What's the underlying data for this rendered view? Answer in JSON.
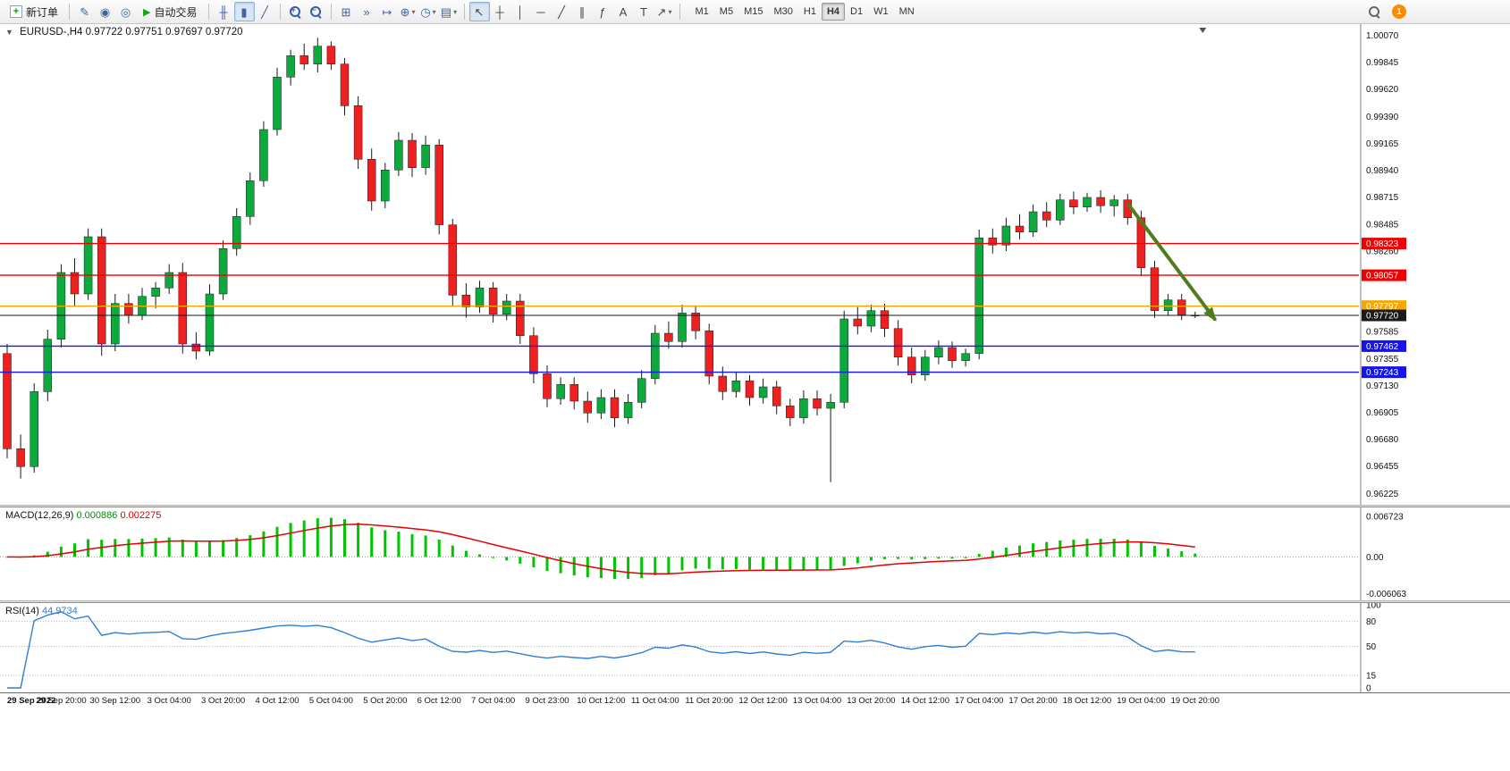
{
  "toolbar": {
    "new_order_label": "新订单",
    "auto_trading_label": "自动交易",
    "left_icons": [
      {
        "name": "metaeditor-icon",
        "glyph": "✎"
      },
      {
        "name": "community-icon",
        "glyph": "◉"
      },
      {
        "name": "support-icon",
        "glyph": "◎"
      }
    ],
    "chart_type_icons": [
      {
        "name": "bar-chart-icon",
        "glyph": "╫"
      },
      {
        "name": "candlestick-chart-icon",
        "glyph": "▮",
        "active": true
      },
      {
        "name": "line-chart-icon",
        "glyph": "╱"
      }
    ],
    "zoom_icons": [
      {
        "name": "zoom-in-icon",
        "sign": "+"
      },
      {
        "name": "zoom-out-icon",
        "sign": "−"
      }
    ],
    "window_icons": [
      {
        "name": "tile-windows-icon",
        "glyph": "⊞"
      },
      {
        "name": "auto-scroll-icon",
        "glyph": "»"
      },
      {
        "name": "chart-shift-icon",
        "glyph": "↦"
      },
      {
        "name": "indicators-icon",
        "glyph": "⊕",
        "dropdown": true
      },
      {
        "name": "periods-icon",
        "glyph": "◷",
        "dropdown": true
      },
      {
        "name": "templates-icon",
        "glyph": "▤",
        "dropdown": true
      }
    ],
    "line_study_icons": [
      {
        "name": "cursor-icon",
        "glyph": "↖",
        "active": true
      },
      {
        "name": "crosshair-icon",
        "glyph": "┼"
      },
      {
        "name": "vertical-line-icon",
        "glyph": "│"
      },
      {
        "name": "horizontal-line-icon",
        "glyph": "─"
      },
      {
        "name": "trendline-icon",
        "glyph": "╱"
      },
      {
        "name": "equidistant-channel-icon",
        "glyph": "∥"
      },
      {
        "name": "fibonacci-icon",
        "glyph": "ƒ"
      },
      {
        "name": "text-icon",
        "glyph": "A"
      },
      {
        "name": "text-label-icon",
        "glyph": "T"
      },
      {
        "name": "arrows-icon",
        "glyph": "↗",
        "dropdown": true
      }
    ],
    "timeframes": [
      "M1",
      "M5",
      "M15",
      "M30",
      "H1",
      "H4",
      "D1",
      "W1",
      "MN"
    ],
    "active_timeframe": "H4",
    "notification_badge": "1"
  },
  "chart": {
    "title": "EURUSD-,H4",
    "ohlc_text": "0.97722 0.97751 0.97697 0.97720"
  },
  "chart_data": {
    "type": "candlestick",
    "symbol": "EURUSD-",
    "timeframe": "H4",
    "price_range": {
      "top": 1.00165,
      "bottom": 0.9613
    },
    "price_scale_labels": [
      "1.00070",
      "0.99845",
      "0.99620",
      "0.99390",
      "0.99165",
      "0.98940",
      "0.98715",
      "0.98485",
      "0.98260",
      "0.98035",
      "0.97810",
      "0.97585",
      "0.97355",
      "0.97130",
      "0.96905",
      "0.96680",
      "0.96455",
      "0.96225"
    ],
    "time_labels": [
      "29 Sep 2022",
      "29 Sep 20:00",
      "30 Sep 12:00",
      "3 Oct 04:00",
      "3 Oct 20:00",
      "4 Oct 12:00",
      "5 Oct 04:00",
      "5 Oct 20:00",
      "6 Oct 12:00",
      "7 Oct 04:00",
      "9 Oct 23:00",
      "10 Oct 12:00",
      "11 Oct 04:00",
      "11 Oct 20:00",
      "12 Oct 12:00",
      "13 Oct 04:00",
      "13 Oct 20:00",
      "14 Oct 12:00",
      "17 Oct 04:00",
      "17 Oct 20:00",
      "18 Oct 12:00",
      "19 Oct 04:00",
      "19 Oct 20:00"
    ],
    "bars_per_time_label": 4,
    "colors": {
      "bull": "#0caa3c",
      "bear": "#ef2020",
      "wick": "#1a1a1a"
    },
    "level_lines": [
      {
        "price": 0.98323,
        "label": "0.98323",
        "color": "#f20000",
        "type": "resistance"
      },
      {
        "price": 0.98057,
        "label": "0.98057",
        "color": "#f20000",
        "type": "resistance"
      },
      {
        "price": 0.97797,
        "label": "0.97797",
        "color": "#f7a800",
        "type": "pivot"
      },
      {
        "price": 0.9772,
        "label": "0.97720",
        "color": "#1a1a1a",
        "type": "current-price"
      },
      {
        "price": 0.97462,
        "label": "0.97462",
        "color": "#1414f0",
        "type": "support"
      },
      {
        "price": 0.97243,
        "label": "0.97243",
        "color": "#1414f0",
        "type": "support"
      }
    ],
    "arrow_annotation": {
      "from_index": 83,
      "from_price": 0.9866,
      "to_index": 89.5,
      "to_price": 0.9768,
      "color": "#4e7d1e"
    },
    "candles": [
      [
        0.974,
        0.9748,
        0.9652,
        0.966
      ],
      [
        0.966,
        0.9672,
        0.9635,
        0.9645
      ],
      [
        0.9645,
        0.9715,
        0.964,
        0.9708
      ],
      [
        0.9708,
        0.976,
        0.97,
        0.9752
      ],
      [
        0.9752,
        0.9815,
        0.9745,
        0.9808
      ],
      [
        0.9808,
        0.982,
        0.978,
        0.979
      ],
      [
        0.979,
        0.9845,
        0.9785,
        0.9838
      ],
      [
        0.9838,
        0.9845,
        0.9738,
        0.9748
      ],
      [
        0.9748,
        0.979,
        0.9742,
        0.9782
      ],
      [
        0.9782,
        0.979,
        0.9765,
        0.9772
      ],
      [
        0.9772,
        0.9795,
        0.9768,
        0.9788
      ],
      [
        0.9788,
        0.98,
        0.9778,
        0.9795
      ],
      [
        0.9795,
        0.9815,
        0.979,
        0.9808
      ],
      [
        0.9808,
        0.9816,
        0.974,
        0.9748
      ],
      [
        0.9748,
        0.9758,
        0.9735,
        0.9742
      ],
      [
        0.9742,
        0.9798,
        0.9738,
        0.979
      ],
      [
        0.979,
        0.9835,
        0.9785,
        0.9828
      ],
      [
        0.9828,
        0.9862,
        0.9822,
        0.9855
      ],
      [
        0.9855,
        0.9892,
        0.9848,
        0.9885
      ],
      [
        0.9885,
        0.9935,
        0.988,
        0.9928
      ],
      [
        0.9928,
        0.998,
        0.9923,
        0.9972
      ],
      [
        0.9972,
        0.9995,
        0.9965,
        0.999
      ],
      [
        0.999,
        1.0,
        0.9978,
        0.9983
      ],
      [
        0.9983,
        1.0005,
        0.9976,
        0.9998
      ],
      [
        0.9998,
        1.0002,
        0.9978,
        0.9983
      ],
      [
        0.9983,
        0.9988,
        0.994,
        0.9948
      ],
      [
        0.9948,
        0.9956,
        0.9895,
        0.9903
      ],
      [
        0.9903,
        0.9912,
        0.986,
        0.9868
      ],
      [
        0.9868,
        0.99,
        0.9862,
        0.9894
      ],
      [
        0.9894,
        0.9926,
        0.9889,
        0.9919
      ],
      [
        0.9919,
        0.9925,
        0.9888,
        0.9896
      ],
      [
        0.9896,
        0.9923,
        0.989,
        0.9915
      ],
      [
        0.9915,
        0.992,
        0.984,
        0.9848
      ],
      [
        0.9848,
        0.9853,
        0.978,
        0.9789
      ],
      [
        0.9789,
        0.9799,
        0.977,
        0.9779
      ],
      [
        0.9779,
        0.9801,
        0.9774,
        0.9795
      ],
      [
        0.9795,
        0.98,
        0.9766,
        0.9773
      ],
      [
        0.9773,
        0.979,
        0.9768,
        0.9784
      ],
      [
        0.9784,
        0.979,
        0.9748,
        0.9755
      ],
      [
        0.9755,
        0.9762,
        0.9715,
        0.9723
      ],
      [
        0.9723,
        0.973,
        0.9695,
        0.9702
      ],
      [
        0.9702,
        0.972,
        0.9697,
        0.9714
      ],
      [
        0.9714,
        0.972,
        0.9693,
        0.97
      ],
      [
        0.97,
        0.9708,
        0.9682,
        0.969
      ],
      [
        0.969,
        0.971,
        0.9685,
        0.9703
      ],
      [
        0.9703,
        0.971,
        0.9678,
        0.9686
      ],
      [
        0.9686,
        0.9706,
        0.9681,
        0.9699
      ],
      [
        0.9699,
        0.9726,
        0.9694,
        0.9719
      ],
      [
        0.9719,
        0.9764,
        0.9714,
        0.9757
      ],
      [
        0.9757,
        0.9767,
        0.9744,
        0.975
      ],
      [
        0.975,
        0.9781,
        0.9745,
        0.9774
      ],
      [
        0.9774,
        0.978,
        0.9752,
        0.9759
      ],
      [
        0.9759,
        0.9765,
        0.9714,
        0.9721
      ],
      [
        0.9721,
        0.9729,
        0.9701,
        0.9708
      ],
      [
        0.9708,
        0.9724,
        0.9703,
        0.9717
      ],
      [
        0.9717,
        0.9722,
        0.9696,
        0.9703
      ],
      [
        0.9703,
        0.9719,
        0.9698,
        0.9712
      ],
      [
        0.9712,
        0.9717,
        0.9689,
        0.9696
      ],
      [
        0.9696,
        0.9702,
        0.9679,
        0.9686
      ],
      [
        0.9686,
        0.9709,
        0.9681,
        0.9702
      ],
      [
        0.9702,
        0.9709,
        0.9688,
        0.9694
      ],
      [
        0.9694,
        0.9706,
        0.9632,
        0.9699
      ],
      [
        0.9699,
        0.9776,
        0.9694,
        0.9769
      ],
      [
        0.9769,
        0.9779,
        0.9756,
        0.9763
      ],
      [
        0.9763,
        0.9781,
        0.9758,
        0.9776
      ],
      [
        0.9776,
        0.9782,
        0.9754,
        0.9761
      ],
      [
        0.9761,
        0.9768,
        0.973,
        0.9737
      ],
      [
        0.9737,
        0.9745,
        0.9715,
        0.9722
      ],
      [
        0.9722,
        0.9743,
        0.9717,
        0.9737
      ],
      [
        0.9737,
        0.9751,
        0.9731,
        0.9745
      ],
      [
        0.9745,
        0.975,
        0.9728,
        0.9734
      ],
      [
        0.9734,
        0.9744,
        0.9729,
        0.974
      ],
      [
        0.974,
        0.9844,
        0.9735,
        0.9837
      ],
      [
        0.9837,
        0.9845,
        0.9824,
        0.9831
      ],
      [
        0.9831,
        0.9854,
        0.9826,
        0.9847
      ],
      [
        0.9847,
        0.9857,
        0.9836,
        0.9842
      ],
      [
        0.9842,
        0.9865,
        0.9838,
        0.9859
      ],
      [
        0.9859,
        0.9867,
        0.9846,
        0.9852
      ],
      [
        0.9852,
        0.9874,
        0.9848,
        0.9869
      ],
      [
        0.9869,
        0.9876,
        0.9857,
        0.9863
      ],
      [
        0.9863,
        0.9875,
        0.9859,
        0.9871
      ],
      [
        0.9871,
        0.9877,
        0.9858,
        0.9864
      ],
      [
        0.9864,
        0.9873,
        0.9855,
        0.9869
      ],
      [
        0.9869,
        0.9874,
        0.9848,
        0.9854
      ],
      [
        0.9854,
        0.986,
        0.9805,
        0.9812
      ],
      [
        0.9812,
        0.9818,
        0.977,
        0.9776
      ],
      [
        0.9776,
        0.979,
        0.9772,
        0.9785
      ],
      [
        0.9785,
        0.979,
        0.9768,
        0.97725
      ],
      [
        0.97722,
        0.97751,
        0.97697,
        0.9772
      ]
    ],
    "macd": {
      "label": "MACD(12,26,9)",
      "values_text": [
        "0.000886",
        "0.002275"
      ],
      "params": [
        12,
        26,
        9
      ],
      "scale_labels": [
        "0.006723",
        "0.00",
        "-0.006063"
      ],
      "histogram_color": "#00c400",
      "signal_color": "#e60000",
      "range": {
        "top": 0.0082,
        "bottom": -0.0072
      }
    },
    "rsi": {
      "label": "RSI(14)",
      "value_text": "44.9734",
      "period": 14,
      "scale_labels": [
        100,
        80,
        50,
        15,
        0
      ],
      "levels": [
        80,
        50,
        15
      ],
      "line_color": "#2e7fd4"
    }
  }
}
